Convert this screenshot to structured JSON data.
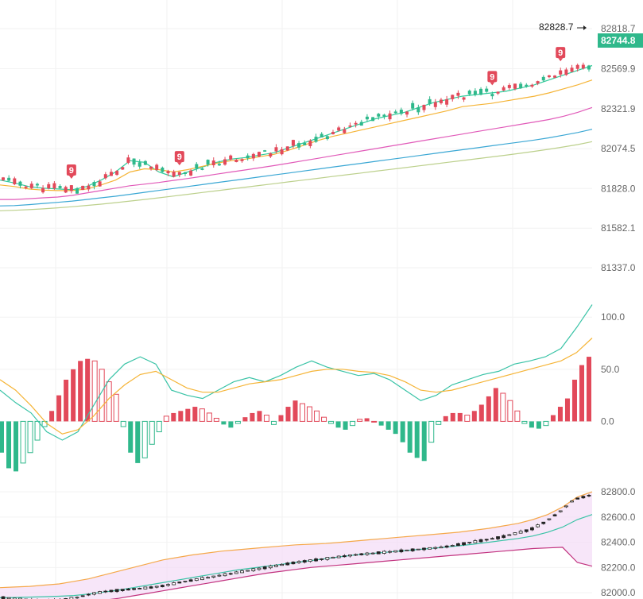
{
  "chart_data": [
    {
      "type": "candlestick",
      "panel": "main",
      "y_ticks": [
        82818.7,
        82569.9,
        82321.9,
        82074.5,
        81828.0,
        81582.1,
        81337.0
      ],
      "y_tick_labels": [
        "82818.7",
        "82569.9",
        "82321.9",
        "82074.5",
        "81828.0",
        "81582.1",
        "81337.0"
      ],
      "ylim": [
        81337.0,
        82818.7
      ],
      "highest_label": "82828.7",
      "last_price_label": "82744.8",
      "last_price": 82744.8,
      "markers": [
        {
          "text": "9",
          "index": 12
        },
        {
          "text": "9",
          "index": 31
        },
        {
          "text": "9",
          "index": 86
        },
        {
          "text": "9",
          "index": 98
        }
      ],
      "moving_averages": [
        {
          "color": "#2ecc9a",
          "values": [
            81880,
            81862,
            81840,
            81830,
            81825,
            81820,
            81840,
            81880,
            81930,
            82000,
            81990,
            81930,
            81900,
            81930,
            81960,
            81990,
            82010,
            82020,
            82035,
            82050,
            82080,
            82110,
            82140,
            82170,
            82200,
            82230,
            82260,
            82280,
            82300,
            82330,
            82360,
            82380,
            82400,
            82410,
            82420,
            82430,
            82450,
            82470,
            82500,
            82530,
            82560,
            82590
          ]
        },
        {
          "color": "#f5b436",
          "values": [
            81850,
            81840,
            81825,
            81818,
            81815,
            81815,
            81825,
            81850,
            81880,
            81930,
            81950,
            81945,
            81930,
            81945,
            81965,
            81985,
            82000,
            82010,
            82025,
            82040,
            82065,
            82095,
            82125,
            82150,
            82170,
            82190,
            82210,
            82230,
            82250,
            82270,
            82290,
            82310,
            82335,
            82345,
            82355,
            82370,
            82385,
            82400,
            82420,
            82445,
            82470,
            82500
          ]
        },
        {
          "color": "#e15ab9",
          "values": [
            81760,
            81760,
            81765,
            81770,
            81775,
            81785,
            81800,
            81815,
            81830,
            81845,
            81855,
            81865,
            81878,
            81890,
            81903,
            81917,
            81930,
            81943,
            81957,
            81970,
            81985,
            82000,
            82015,
            82030,
            82045,
            82060,
            82075,
            82090,
            82105,
            82120,
            82135,
            82150,
            82165,
            82180,
            82195,
            82210,
            82225,
            82240,
            82255,
            82275,
            82300,
            82330
          ]
        },
        {
          "color": "#3aa7d4",
          "values": [
            81720,
            81722,
            81728,
            81735,
            81742,
            81750,
            81760,
            81770,
            81780,
            81792,
            81804,
            81816,
            81828,
            81840,
            81852,
            81864,
            81876,
            81888,
            81900,
            81912,
            81924,
            81936,
            81948,
            81960,
            81972,
            81984,
            81996,
            82008,
            82020,
            82032,
            82044,
            82056,
            82068,
            82080,
            82092,
            82104,
            82116,
            82128,
            82142,
            82158,
            82175,
            82195
          ]
        },
        {
          "color": "#bcd08c",
          "values": [
            81690,
            81693,
            81697,
            81702,
            81708,
            81715,
            81723,
            81731,
            81740,
            81750,
            81760,
            81770,
            81781,
            81792,
            81803,
            81814,
            81825,
            81836,
            81847,
            81858,
            81869,
            81880,
            81891,
            81902,
            81913,
            81924,
            81935,
            81946,
            81957,
            81968,
            81979,
            81990,
            82001,
            82012,
            82023,
            82034,
            82046,
            82058,
            82071,
            82085,
            82100,
            82118
          ]
        }
      ]
    },
    {
      "type": "bar",
      "panel": "oscillator",
      "y_ticks": [
        100.0,
        50.0,
        0.0
      ],
      "y_tick_labels": [
        "100.0",
        "50.0",
        "0.0"
      ],
      "ylim": [
        -50,
        120
      ],
      "histogram": [
        -30,
        -45,
        -48,
        -40,
        -30,
        -18,
        -5,
        10,
        25,
        40,
        50,
        58,
        60,
        58,
        50,
        38,
        26,
        -5,
        -30,
        -40,
        -35,
        -22,
        -10,
        5,
        8,
        10,
        12,
        14,
        12,
        8,
        3,
        -3,
        -6,
        -2,
        4,
        8,
        10,
        6,
        -3,
        6,
        14,
        20,
        17,
        14,
        10,
        4,
        -2,
        -6,
        -8,
        -4,
        2,
        3,
        0,
        -4,
        -8,
        -12,
        -20,
        -30,
        -35,
        -38,
        -20,
        -3,
        5,
        8,
        8,
        6,
        10,
        16,
        24,
        32,
        27,
        20,
        10,
        -2,
        -6,
        -7,
        -4,
        6,
        14,
        22,
        40,
        54,
        62
      ],
      "lines": [
        {
          "color": "#39c3a6",
          "values": [
            30,
            18,
            8,
            -10,
            -18,
            -10,
            15,
            40,
            55,
            62,
            55,
            30,
            25,
            22,
            30,
            38,
            42,
            38,
            44,
            52,
            58,
            52,
            48,
            44,
            46,
            40,
            30,
            20,
            25,
            35,
            40,
            45,
            48,
            55,
            58,
            62,
            70,
            90,
            112
          ]
        },
        {
          "color": "#f5b436",
          "values": [
            40,
            30,
            15,
            -2,
            -12,
            -8,
            5,
            22,
            35,
            45,
            48,
            40,
            32,
            28,
            28,
            32,
            36,
            38,
            40,
            44,
            48,
            50,
            50,
            48,
            47,
            44,
            38,
            30,
            28,
            30,
            34,
            38,
            42,
            46,
            50,
            54,
            58,
            66,
            80
          ]
        }
      ]
    },
    {
      "type": "candlestick",
      "panel": "bands",
      "y_ticks": [
        82800.0,
        82600.0,
        82400.0,
        82200.0,
        82000.0
      ],
      "y_tick_labels": [
        "82800.0",
        "82600.0",
        "82400.0",
        "82200.0",
        "82000.0"
      ],
      "ylim": [
        81950,
        82870
      ],
      "closes": [
        81960,
        81950,
        81940,
        81935,
        81945,
        81960,
        81990,
        82010,
        82020,
        82030,
        82040,
        82055,
        82080,
        82100,
        82120,
        82140,
        82160,
        82180,
        82200,
        82220,
        82240,
        82255,
        82270,
        82285,
        82300,
        82310,
        82320,
        82330,
        82340,
        82350,
        82360,
        82380,
        82400,
        82420,
        82440,
        82470,
        82500,
        82560,
        82640,
        82740,
        82770
      ],
      "bands": {
        "upper": [
          82040,
          82045,
          82050,
          82060,
          82070,
          82090,
          82110,
          82140,
          82170,
          82200,
          82230,
          82260,
          82280,
          82300,
          82315,
          82330,
          82340,
          82350,
          82360,
          82370,
          82380,
          82385,
          82390,
          82400,
          82410,
          82420,
          82430,
          82440,
          82450,
          82460,
          82470,
          82480,
          82495,
          82510,
          82530,
          82550,
          82580,
          82620,
          82680,
          82760,
          82800
        ],
        "middle": [
          81960,
          81962,
          81965,
          81968,
          81972,
          81978,
          81990,
          82005,
          82020,
          82040,
          82060,
          82080,
          82100,
          82120,
          82140,
          82160,
          82180,
          82195,
          82210,
          82225,
          82240,
          82255,
          82270,
          82285,
          82300,
          82310,
          82320,
          82330,
          82340,
          82350,
          82360,
          82372,
          82385,
          82400,
          82415,
          82430,
          82450,
          82480,
          82520,
          82580,
          82620
        ],
        "lower": [
          81900,
          81900,
          81902,
          81905,
          81910,
          81915,
          81925,
          81940,
          81955,
          81975,
          81995,
          82015,
          82035,
          82055,
          82075,
          82095,
          82115,
          82135,
          82155,
          82170,
          82185,
          82200,
          82210,
          82220,
          82230,
          82240,
          82250,
          82260,
          82270,
          82280,
          82290,
          82300,
          82310,
          82320,
          82330,
          82340,
          82350,
          82355,
          82360,
          82240,
          82210
        ]
      }
    }
  ]
}
